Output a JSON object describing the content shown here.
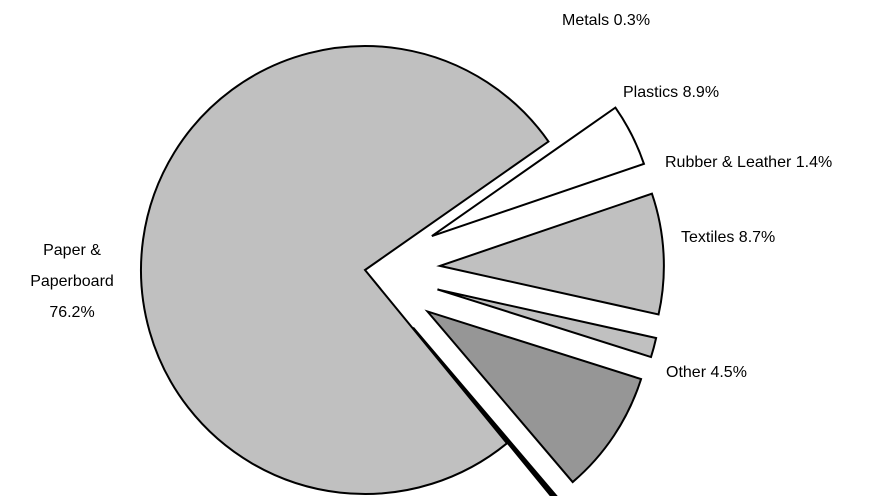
{
  "chart_data": {
    "type": "pie",
    "title": "",
    "slices": [
      {
        "label": "Paper & Paperboard",
        "label_lines": [
          "Paper &",
          "Paperboard",
          "76.2%"
        ],
        "value": 76.2,
        "color": "#c0c0c0",
        "exploded": false
      },
      {
        "label": "Metals",
        "label_lines": [
          "Metals 0.3%"
        ],
        "value": 0.3,
        "color": "#000000",
        "exploded": true
      },
      {
        "label": "Plastics",
        "label_lines": [
          "Plastics 8.9%"
        ],
        "value": 8.9,
        "color": "#969696",
        "exploded": true
      },
      {
        "label": "Rubber & Leather",
        "label_lines": [
          "Rubber & Leather 1.4%"
        ],
        "value": 1.4,
        "color": "#c0c0c0",
        "exploded": true
      },
      {
        "label": "Textiles",
        "label_lines": [
          "Textiles 8.7%"
        ],
        "value": 8.7,
        "color": "#c0c0c0",
        "exploded": true
      },
      {
        "label": "Other",
        "label_lines": [
          "Other 4.5%"
        ],
        "value": 4.5,
        "color": "#ffffff",
        "exploded": true
      }
    ],
    "legend": "none",
    "slice_outline_color": "#000000"
  }
}
